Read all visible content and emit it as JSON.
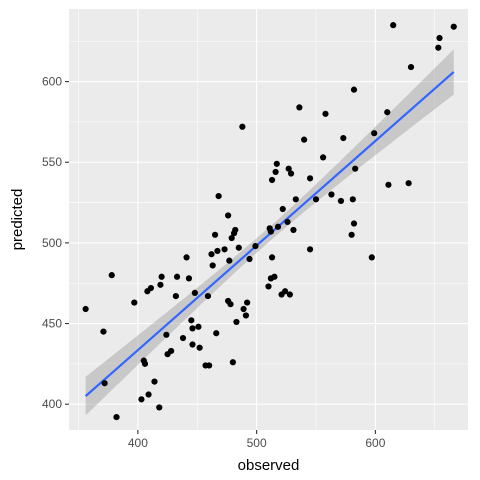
{
  "chart_data": {
    "type": "scatter",
    "title": "",
    "xlabel": "observed",
    "ylabel": "predicted",
    "xlim": [
      342,
      678
    ],
    "ylim": [
      384,
      645
    ],
    "x_ticks": [
      400,
      500,
      600
    ],
    "y_ticks": [
      400,
      450,
      500,
      550,
      600
    ],
    "grid": true,
    "legend": "none",
    "colors": {
      "panel": "#ebebeb",
      "grid": "#ffffff",
      "points": "#000000",
      "fit_line": "#3366ff",
      "confidence_band": "#999999"
    },
    "fit": {
      "method": "linear",
      "x_range": [
        356,
        666
      ],
      "y_at_start": 405,
      "y_at_end": 606,
      "band_halfwidth_at_start": 12,
      "band_halfwidth_at_center": 4.5,
      "band_halfwidth_at_end": 14
    },
    "points": [
      [
        356,
        459
      ],
      [
        371,
        445
      ],
      [
        372,
        413
      ],
      [
        378,
        480
      ],
      [
        382,
        392
      ],
      [
        397,
        463
      ],
      [
        403,
        403
      ],
      [
        405,
        427
      ],
      [
        406,
        425
      ],
      [
        408,
        470
      ],
      [
        409,
        406
      ],
      [
        411,
        472
      ],
      [
        414,
        414
      ],
      [
        418,
        398
      ],
      [
        419,
        474
      ],
      [
        420,
        479
      ],
      [
        424,
        443
      ],
      [
        425,
        431
      ],
      [
        428,
        433
      ],
      [
        432,
        467
      ],
      [
        433,
        479
      ],
      [
        438,
        441
      ],
      [
        441,
        491
      ],
      [
        443,
        478
      ],
      [
        445,
        452
      ],
      [
        446,
        447
      ],
      [
        446,
        437
      ],
      [
        448,
        469
      ],
      [
        451,
        448
      ],
      [
        452,
        435
      ],
      [
        457,
        424
      ],
      [
        459,
        467
      ],
      [
        460,
        424
      ],
      [
        462,
        493
      ],
      [
        463,
        486
      ],
      [
        465,
        505
      ],
      [
        466,
        444
      ],
      [
        467,
        495
      ],
      [
        468,
        529
      ],
      [
        473,
        496
      ],
      [
        476,
        517
      ],
      [
        476,
        464
      ],
      [
        477,
        489
      ],
      [
        478,
        462
      ],
      [
        479,
        503
      ],
      [
        480,
        426
      ],
      [
        481,
        506
      ],
      [
        482,
        508
      ],
      [
        483,
        451
      ],
      [
        485,
        497
      ],
      [
        488,
        572
      ],
      [
        489,
        459
      ],
      [
        491,
        455
      ],
      [
        492,
        463
      ],
      [
        494,
        490
      ],
      [
        499,
        498
      ],
      [
        510,
        473
      ],
      [
        511,
        509
      ],
      [
        512,
        507
      ],
      [
        512,
        478
      ],
      [
        513,
        491
      ],
      [
        513,
        539
      ],
      [
        515,
        479
      ],
      [
        516,
        544
      ],
      [
        517,
        549
      ],
      [
        518,
        510
      ],
      [
        521,
        468
      ],
      [
        522,
        521
      ],
      [
        524,
        470
      ],
      [
        526,
        513
      ],
      [
        527,
        546
      ],
      [
        528,
        468
      ],
      [
        529,
        543
      ],
      [
        531,
        508
      ],
      [
        533,
        527
      ],
      [
        536,
        584
      ],
      [
        540,
        564
      ],
      [
        545,
        496
      ],
      [
        545,
        540
      ],
      [
        550,
        527
      ],
      [
        556,
        553
      ],
      [
        558,
        580
      ],
      [
        563,
        530
      ],
      [
        571,
        526
      ],
      [
        573,
        565
      ],
      [
        580,
        505
      ],
      [
        581,
        527
      ],
      [
        582,
        512
      ],
      [
        582,
        595
      ],
      [
        583,
        546
      ],
      [
        597,
        491
      ],
      [
        599,
        568
      ],
      [
        610,
        581
      ],
      [
        611,
        536
      ],
      [
        615,
        635
      ],
      [
        628,
        537
      ],
      [
        630,
        609
      ],
      [
        653,
        621
      ],
      [
        654,
        627
      ],
      [
        666,
        634
      ]
    ]
  }
}
